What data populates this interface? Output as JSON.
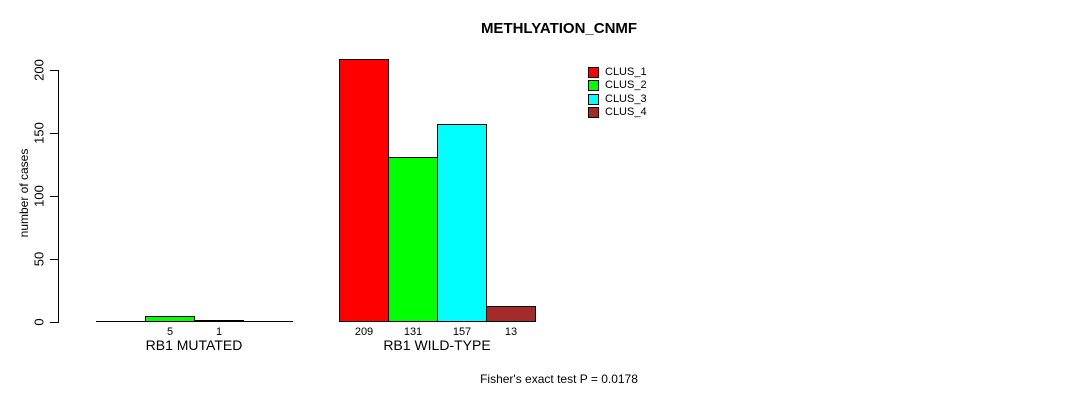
{
  "chart_data": {
    "type": "bar",
    "title": "METHLYATION_CNMF",
    "categories": [
      "RB1 MUTATED",
      "RB1 WILD-TYPE"
    ],
    "series": [
      {
        "name": "CLUS_1",
        "color": "#FF0000",
        "values": [
          0,
          209
        ]
      },
      {
        "name": "CLUS_2",
        "color": "#00FF00",
        "values": [
          5,
          131
        ]
      },
      {
        "name": "CLUS_3",
        "color": "#00FFFF",
        "values": [
          1,
          157
        ]
      },
      {
        "name": "CLUS_4",
        "color": "#A52A2A",
        "values": [
          0,
          13
        ]
      }
    ],
    "bar_value_labels": "value shown under each bar, only when value > 0",
    "xlabel": "",
    "ylabel": "number of cases",
    "yticks": [
      0,
      50,
      100,
      150,
      200
    ],
    "ylim": [
      0,
      209
    ],
    "grid": false,
    "legend_position": "top-right",
    "annotation": "Fisher's exact test P = 0.0178"
  },
  "colors": {
    "axis": "#000000",
    "background": "#ffffff",
    "text": "#000000"
  }
}
